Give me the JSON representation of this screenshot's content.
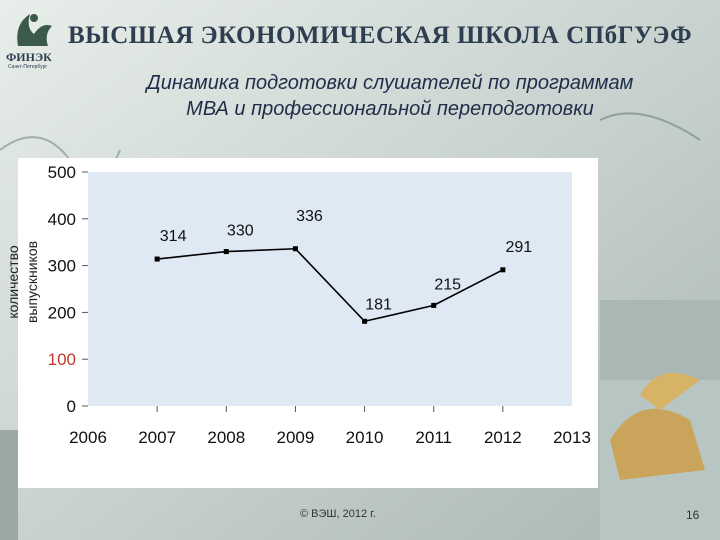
{
  "slide": {
    "header": "ВЫСШАЯ ЭКОНОМИЧЕСКАЯ ШКОЛА СПбГУЭФ",
    "logo_text": "ФИНЭК",
    "logo_sub": "Санкт-Петербург",
    "title_line1": "Динамика подготовки слушателей по программам",
    "title_line2": "МВА и профессиональной переподготовки",
    "footer": "© ВЭШ, 2012  г.",
    "page_number": "16"
  },
  "chart_data": {
    "type": "line",
    "title": "Динамика подготовки слушателей по программам МВА и профессиональной переподготовки",
    "ylabel_line1": "количество",
    "ylabel_line2": "выпускников",
    "xlabel": "",
    "x_ticks": [
      "2006",
      "2007",
      "2008",
      "2009",
      "2010",
      "2011",
      "2012",
      "2013"
    ],
    "xlim": [
      2006,
      2013
    ],
    "y_ticks": [
      0,
      100,
      200,
      300,
      400,
      500
    ],
    "ylim": [
      0,
      500
    ],
    "grid": false,
    "series": [
      {
        "x": [
          2007,
          2008,
          2009,
          2010,
          2011,
          2012
        ],
        "values": [
          314,
          330,
          336,
          181,
          215,
          291
        ],
        "labels": [
          "314",
          "330",
          "336",
          "181",
          "215",
          "291"
        ]
      }
    ],
    "colors": {
      "plot_bg": "#dfe9f4",
      "line": "#000000",
      "y_tick_highlight": "#c0392b"
    }
  }
}
